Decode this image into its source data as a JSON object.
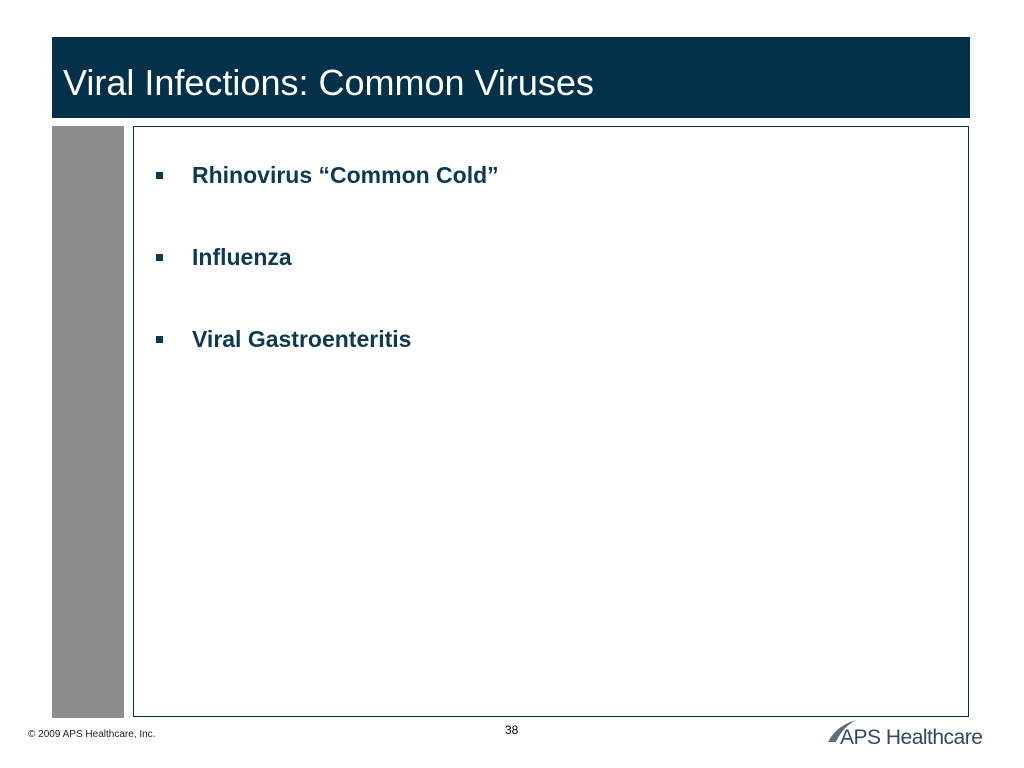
{
  "header": {
    "title": "Viral Infections: Common Viruses"
  },
  "bullets": [
    "Rhinovirus “Common Cold”",
    "Influenza",
    "Viral Gastroenteritis"
  ],
  "footer": {
    "copyright": "© 2009 APS Healthcare, Inc.",
    "page_number": "38",
    "logo": "APS Healthcare"
  }
}
